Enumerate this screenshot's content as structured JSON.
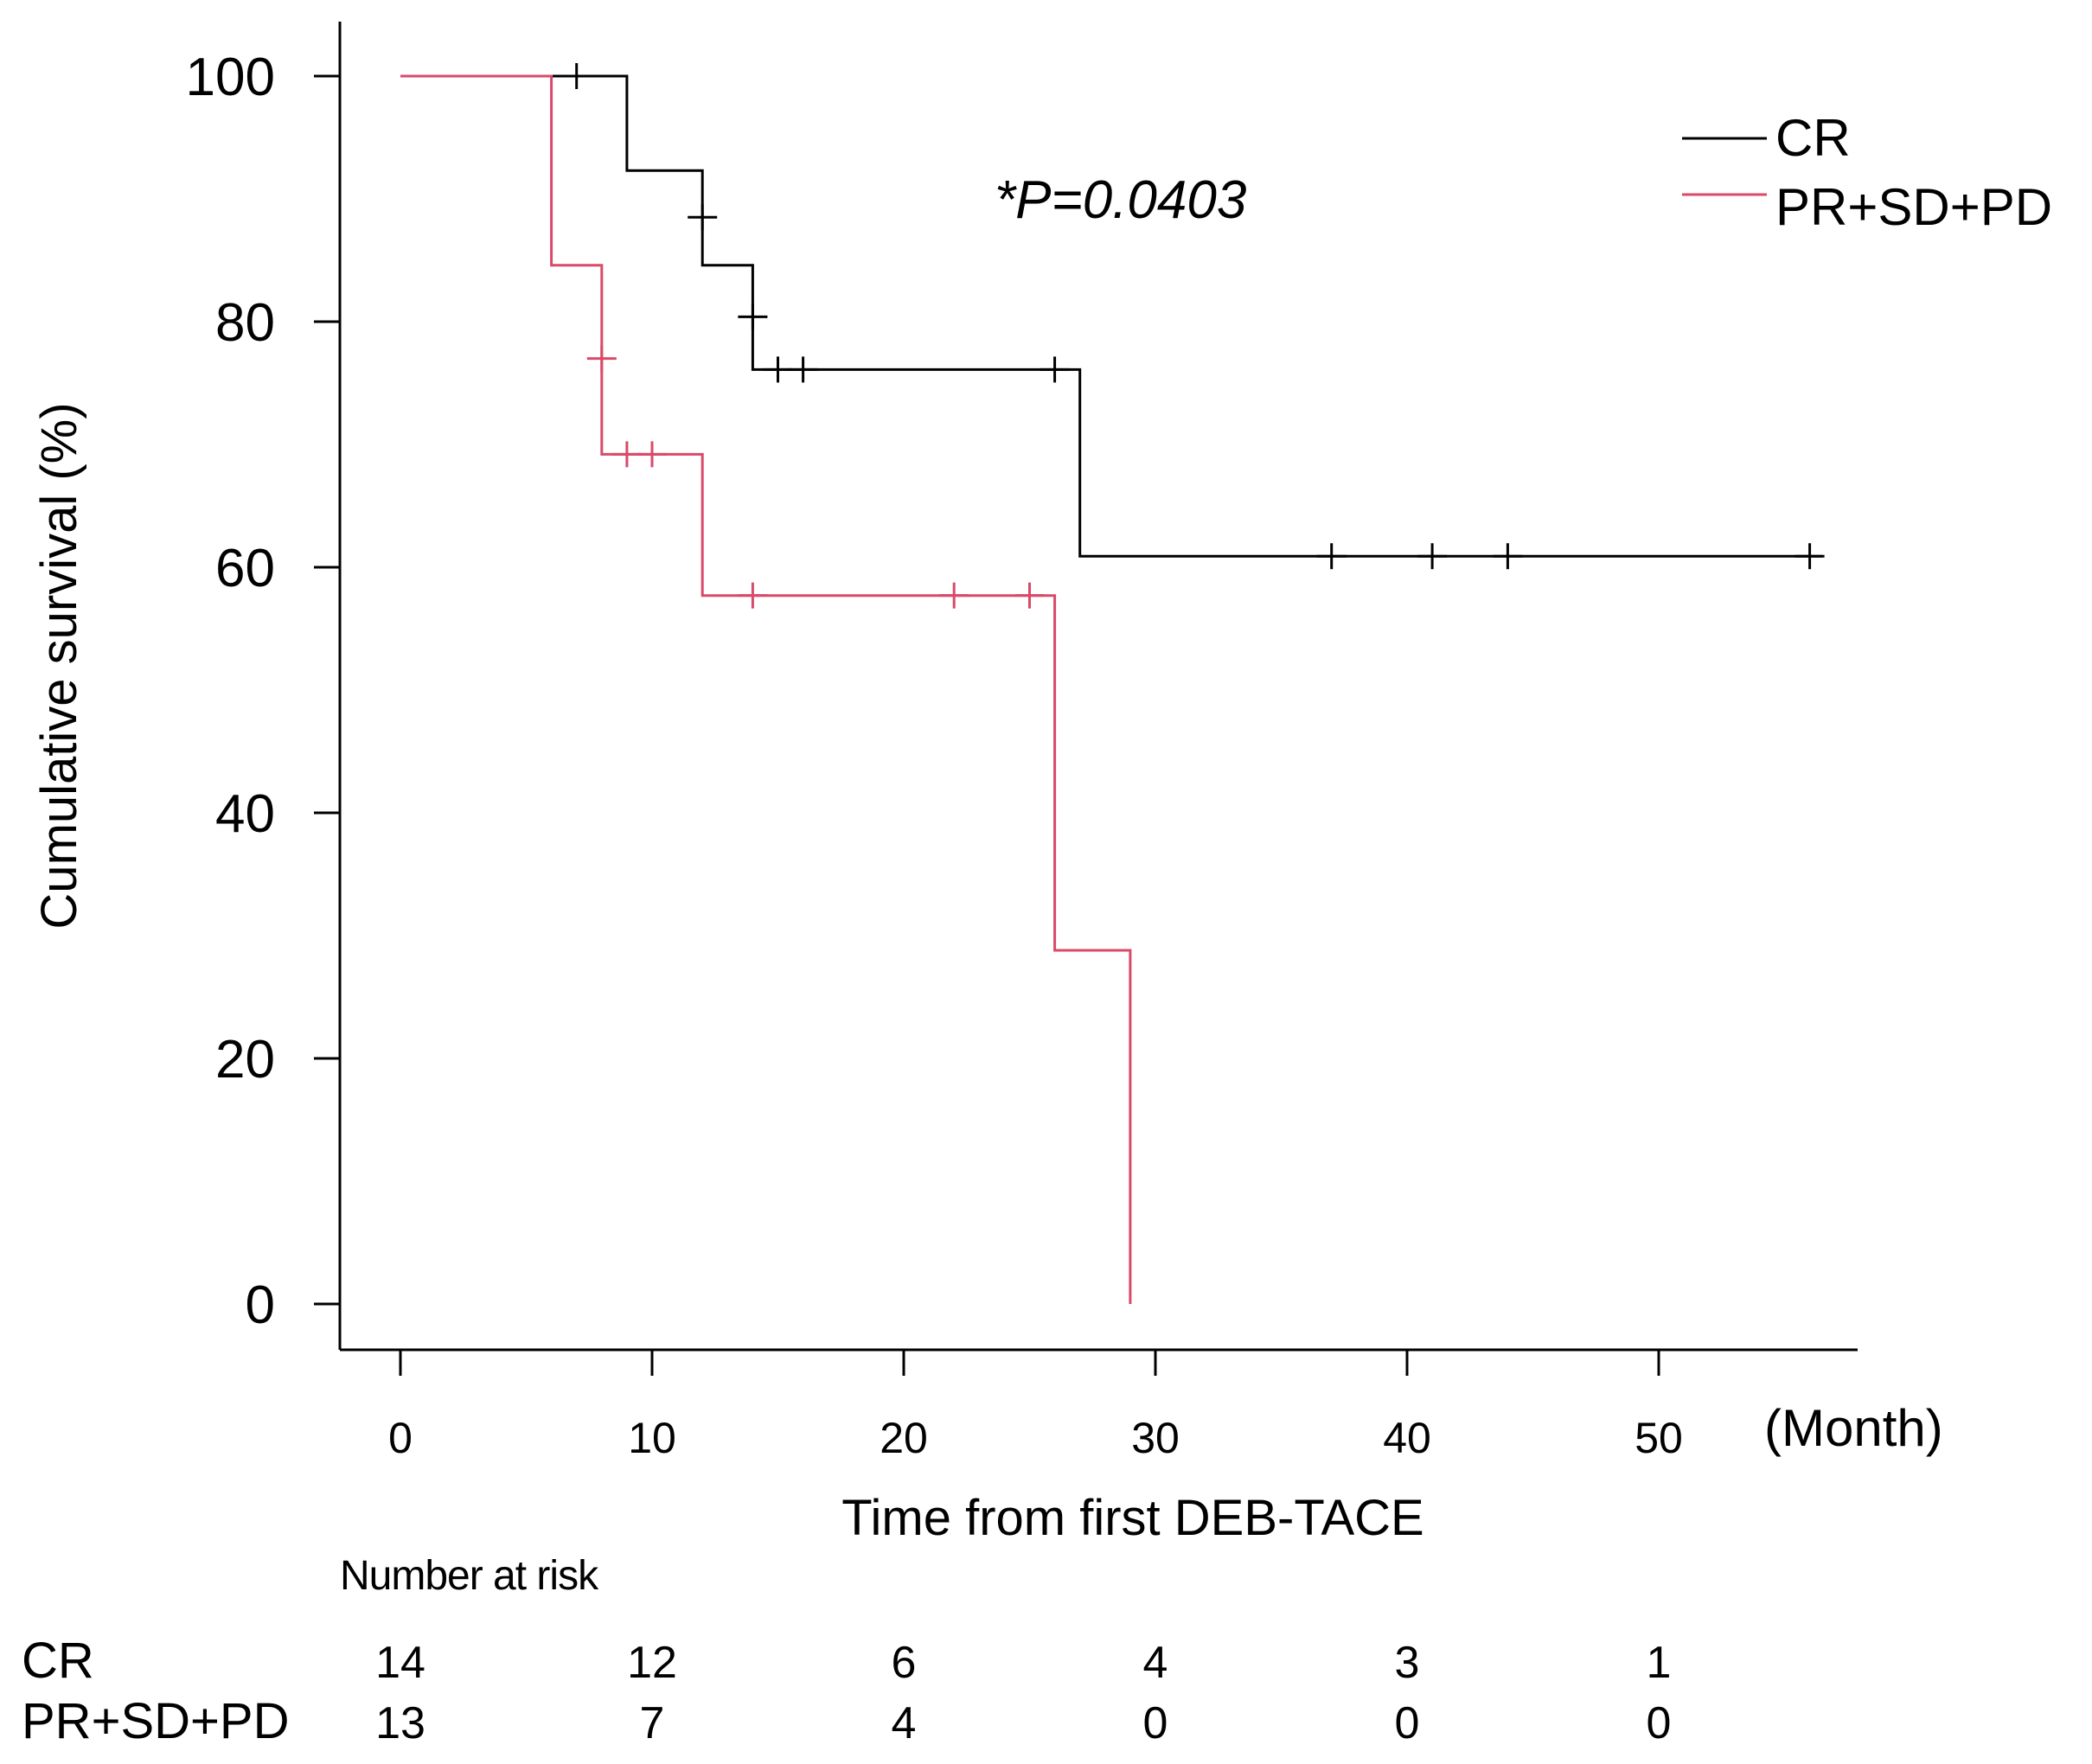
{
  "chart_data": {
    "type": "line",
    "subtype": "kaplan-meier",
    "title": "",
    "ylabel": "Cumulative survival (%)",
    "xlabel": "Time from first DEB-TACE",
    "xunit": "(Month)",
    "xlim": [
      0,
      58
    ],
    "ylim": [
      0,
      100
    ],
    "xticks": [
      "0",
      "10",
      "20",
      "30",
      "40",
      "50"
    ],
    "yticks": [
      "0",
      "20",
      "40",
      "60",
      "80",
      "100"
    ],
    "annotation": "*P=0.0403",
    "legend_position": "top-right",
    "series": [
      {
        "name": "CR",
        "color": "#000000",
        "steps": [
          [
            0,
            100
          ],
          [
            9,
            100
          ],
          [
            9,
            92.3
          ],
          [
            12,
            92.3
          ],
          [
            12,
            84.6
          ],
          [
            14,
            84.6
          ],
          [
            14,
            76.1
          ],
          [
            27,
            76.1
          ],
          [
            27,
            60.9
          ],
          [
            56.5,
            60.9
          ]
        ],
        "censored": [
          [
            7,
            100
          ],
          [
            12,
            88.5
          ],
          [
            14,
            80.4
          ],
          [
            15,
            76.1
          ],
          [
            16,
            76.1
          ],
          [
            26,
            76.1
          ],
          [
            37,
            60.9
          ],
          [
            41,
            60.9
          ],
          [
            44,
            60.9
          ],
          [
            56,
            60.9
          ]
        ]
      },
      {
        "name": "PR+SD+PD",
        "color": "#d94a6a",
        "steps": [
          [
            0,
            100
          ],
          [
            6,
            100
          ],
          [
            6,
            84.6
          ],
          [
            8,
            84.6
          ],
          [
            8,
            69.2
          ],
          [
            12,
            69.2
          ],
          [
            12,
            57.7
          ],
          [
            26,
            57.7
          ],
          [
            26,
            28.8
          ],
          [
            29,
            28.8
          ],
          [
            29,
            0
          ]
        ],
        "censored": [
          [
            8,
            77
          ],
          [
            9,
            69.2
          ],
          [
            10,
            69.2
          ],
          [
            14,
            57.7
          ],
          [
            22,
            57.7
          ],
          [
            25,
            57.7
          ]
        ]
      }
    ],
    "risk_table": {
      "title": "Number at risk",
      "rows": [
        {
          "label": "CR",
          "values": [
            "14",
            "12",
            "6",
            "4",
            "3",
            "1"
          ]
        },
        {
          "label": "PR+SD+PD",
          "values": [
            "13",
            "7",
            "4",
            "0",
            "0",
            "0"
          ]
        }
      ]
    }
  }
}
